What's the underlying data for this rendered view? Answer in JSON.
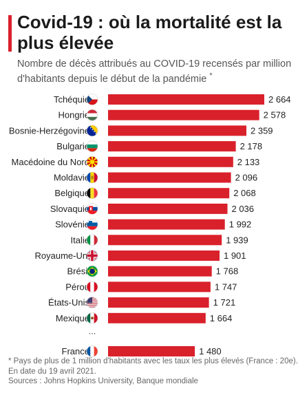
{
  "header": {
    "title": "Covid-19 : où la mortalité est la plus élevée",
    "subtitle": "Nombre de décès attribués au COVID-19 recensés par million d'habitants depuis le début de la pandémie",
    "subtitle_star": "*"
  },
  "colors": {
    "accent": "#d9212b",
    "bar": "#d9212b"
  },
  "chart_data": {
    "type": "bar",
    "orientation": "horizontal",
    "categories": [
      "Tchéquie",
      "Hongrie",
      "Bosnie-Herzégovine",
      "Bulgarie",
      "Macédoine du Nord",
      "Moldavie",
      "Belgique",
      "Slovaquie",
      "Slovénie",
      "Italie",
      "Royaume-Uni",
      "Brésil",
      "Pérou",
      "États-Unis",
      "Mexique",
      "France"
    ],
    "values": [
      2664,
      2578,
      2359,
      2178,
      2133,
      2096,
      2068,
      2036,
      1992,
      1939,
      1901,
      1768,
      1747,
      1721,
      1664,
      1480
    ],
    "value_labels": [
      "2 664",
      "2 578",
      "2 359",
      "2 178",
      "2 133",
      "2 096",
      "2 068",
      "2 036",
      "1 992",
      "1 939",
      "1 901",
      "1 768",
      "1 747",
      "1 721",
      "1 664",
      "1 480"
    ],
    "flags": [
      "cz-flag-icon",
      "hu-flag-icon",
      "ba-flag-icon",
      "bg-flag-icon",
      "mk-flag-icon",
      "md-flag-icon",
      "be-flag-icon",
      "sk-flag-icon",
      "si-flag-icon",
      "it-flag-icon",
      "uk-flag-icon",
      "br-flag-icon",
      "pe-flag-icon",
      "us-flag-icon",
      "mx-flag-icon",
      "fr-flag-icon"
    ],
    "ellipsis_after_index": 14,
    "ellipsis_text": "...",
    "xlim": [
      0,
      2664
    ],
    "grid": false,
    "legend": "none"
  },
  "footer": {
    "note": "* Pays de plus de 1 million d'habitants avec les taux les plus élevés (France : 20e).",
    "date": "En date du 19 avril 2021.",
    "sources": "Sources : Johns Hopkins University, Banque mondiale"
  }
}
